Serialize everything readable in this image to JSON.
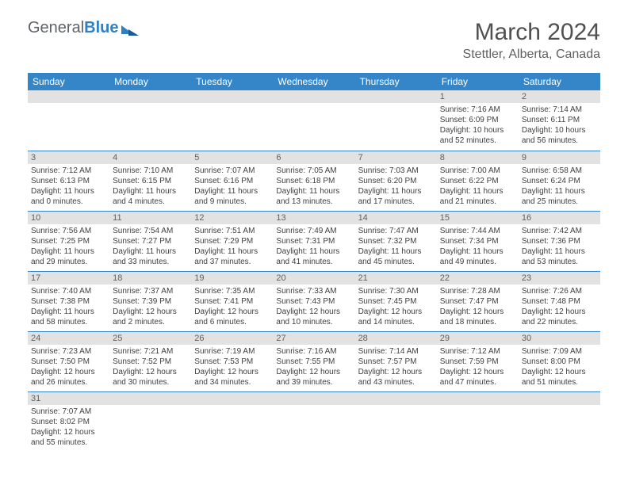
{
  "logo": {
    "part1": "General",
    "part2": "Blue"
  },
  "title": "March 2024",
  "subtitle": "Stettler, Alberta, Canada",
  "colors": {
    "header_bg": "#3586c8",
    "header_text": "#ffffff",
    "daynum_bg": "#e2e2e2",
    "row_border": "#3586c8",
    "body_text": "#404040",
    "logo_gray": "#5f6368",
    "logo_blue": "#2f7fc4"
  },
  "days_of_week": [
    "Sunday",
    "Monday",
    "Tuesday",
    "Wednesday",
    "Thursday",
    "Friday",
    "Saturday"
  ],
  "weeks": [
    [
      null,
      null,
      null,
      null,
      null,
      {
        "n": "1",
        "sr": "7:16 AM",
        "ss": "6:09 PM",
        "dl": "10 hours and 52 minutes."
      },
      {
        "n": "2",
        "sr": "7:14 AM",
        "ss": "6:11 PM",
        "dl": "10 hours and 56 minutes."
      }
    ],
    [
      {
        "n": "3",
        "sr": "7:12 AM",
        "ss": "6:13 PM",
        "dl": "11 hours and 0 minutes."
      },
      {
        "n": "4",
        "sr": "7:10 AM",
        "ss": "6:15 PM",
        "dl": "11 hours and 4 minutes."
      },
      {
        "n": "5",
        "sr": "7:07 AM",
        "ss": "6:16 PM",
        "dl": "11 hours and 9 minutes."
      },
      {
        "n": "6",
        "sr": "7:05 AM",
        "ss": "6:18 PM",
        "dl": "11 hours and 13 minutes."
      },
      {
        "n": "7",
        "sr": "7:03 AM",
        "ss": "6:20 PM",
        "dl": "11 hours and 17 minutes."
      },
      {
        "n": "8",
        "sr": "7:00 AM",
        "ss": "6:22 PM",
        "dl": "11 hours and 21 minutes."
      },
      {
        "n": "9",
        "sr": "6:58 AM",
        "ss": "6:24 PM",
        "dl": "11 hours and 25 minutes."
      }
    ],
    [
      {
        "n": "10",
        "sr": "7:56 AM",
        "ss": "7:25 PM",
        "dl": "11 hours and 29 minutes."
      },
      {
        "n": "11",
        "sr": "7:54 AM",
        "ss": "7:27 PM",
        "dl": "11 hours and 33 minutes."
      },
      {
        "n": "12",
        "sr": "7:51 AM",
        "ss": "7:29 PM",
        "dl": "11 hours and 37 minutes."
      },
      {
        "n": "13",
        "sr": "7:49 AM",
        "ss": "7:31 PM",
        "dl": "11 hours and 41 minutes."
      },
      {
        "n": "14",
        "sr": "7:47 AM",
        "ss": "7:32 PM",
        "dl": "11 hours and 45 minutes."
      },
      {
        "n": "15",
        "sr": "7:44 AM",
        "ss": "7:34 PM",
        "dl": "11 hours and 49 minutes."
      },
      {
        "n": "16",
        "sr": "7:42 AM",
        "ss": "7:36 PM",
        "dl": "11 hours and 53 minutes."
      }
    ],
    [
      {
        "n": "17",
        "sr": "7:40 AM",
        "ss": "7:38 PM",
        "dl": "11 hours and 58 minutes."
      },
      {
        "n": "18",
        "sr": "7:37 AM",
        "ss": "7:39 PM",
        "dl": "12 hours and 2 minutes."
      },
      {
        "n": "19",
        "sr": "7:35 AM",
        "ss": "7:41 PM",
        "dl": "12 hours and 6 minutes."
      },
      {
        "n": "20",
        "sr": "7:33 AM",
        "ss": "7:43 PM",
        "dl": "12 hours and 10 minutes."
      },
      {
        "n": "21",
        "sr": "7:30 AM",
        "ss": "7:45 PM",
        "dl": "12 hours and 14 minutes."
      },
      {
        "n": "22",
        "sr": "7:28 AM",
        "ss": "7:47 PM",
        "dl": "12 hours and 18 minutes."
      },
      {
        "n": "23",
        "sr": "7:26 AM",
        "ss": "7:48 PM",
        "dl": "12 hours and 22 minutes."
      }
    ],
    [
      {
        "n": "24",
        "sr": "7:23 AM",
        "ss": "7:50 PM",
        "dl": "12 hours and 26 minutes."
      },
      {
        "n": "25",
        "sr": "7:21 AM",
        "ss": "7:52 PM",
        "dl": "12 hours and 30 minutes."
      },
      {
        "n": "26",
        "sr": "7:19 AM",
        "ss": "7:53 PM",
        "dl": "12 hours and 34 minutes."
      },
      {
        "n": "27",
        "sr": "7:16 AM",
        "ss": "7:55 PM",
        "dl": "12 hours and 39 minutes."
      },
      {
        "n": "28",
        "sr": "7:14 AM",
        "ss": "7:57 PM",
        "dl": "12 hours and 43 minutes."
      },
      {
        "n": "29",
        "sr": "7:12 AM",
        "ss": "7:59 PM",
        "dl": "12 hours and 47 minutes."
      },
      {
        "n": "30",
        "sr": "7:09 AM",
        "ss": "8:00 PM",
        "dl": "12 hours and 51 minutes."
      }
    ],
    [
      {
        "n": "31",
        "sr": "7:07 AM",
        "ss": "8:02 PM",
        "dl": "12 hours and 55 minutes."
      },
      null,
      null,
      null,
      null,
      null,
      null
    ]
  ],
  "labels": {
    "sunrise": "Sunrise: ",
    "sunset": "Sunset: ",
    "daylight": "Daylight: "
  }
}
